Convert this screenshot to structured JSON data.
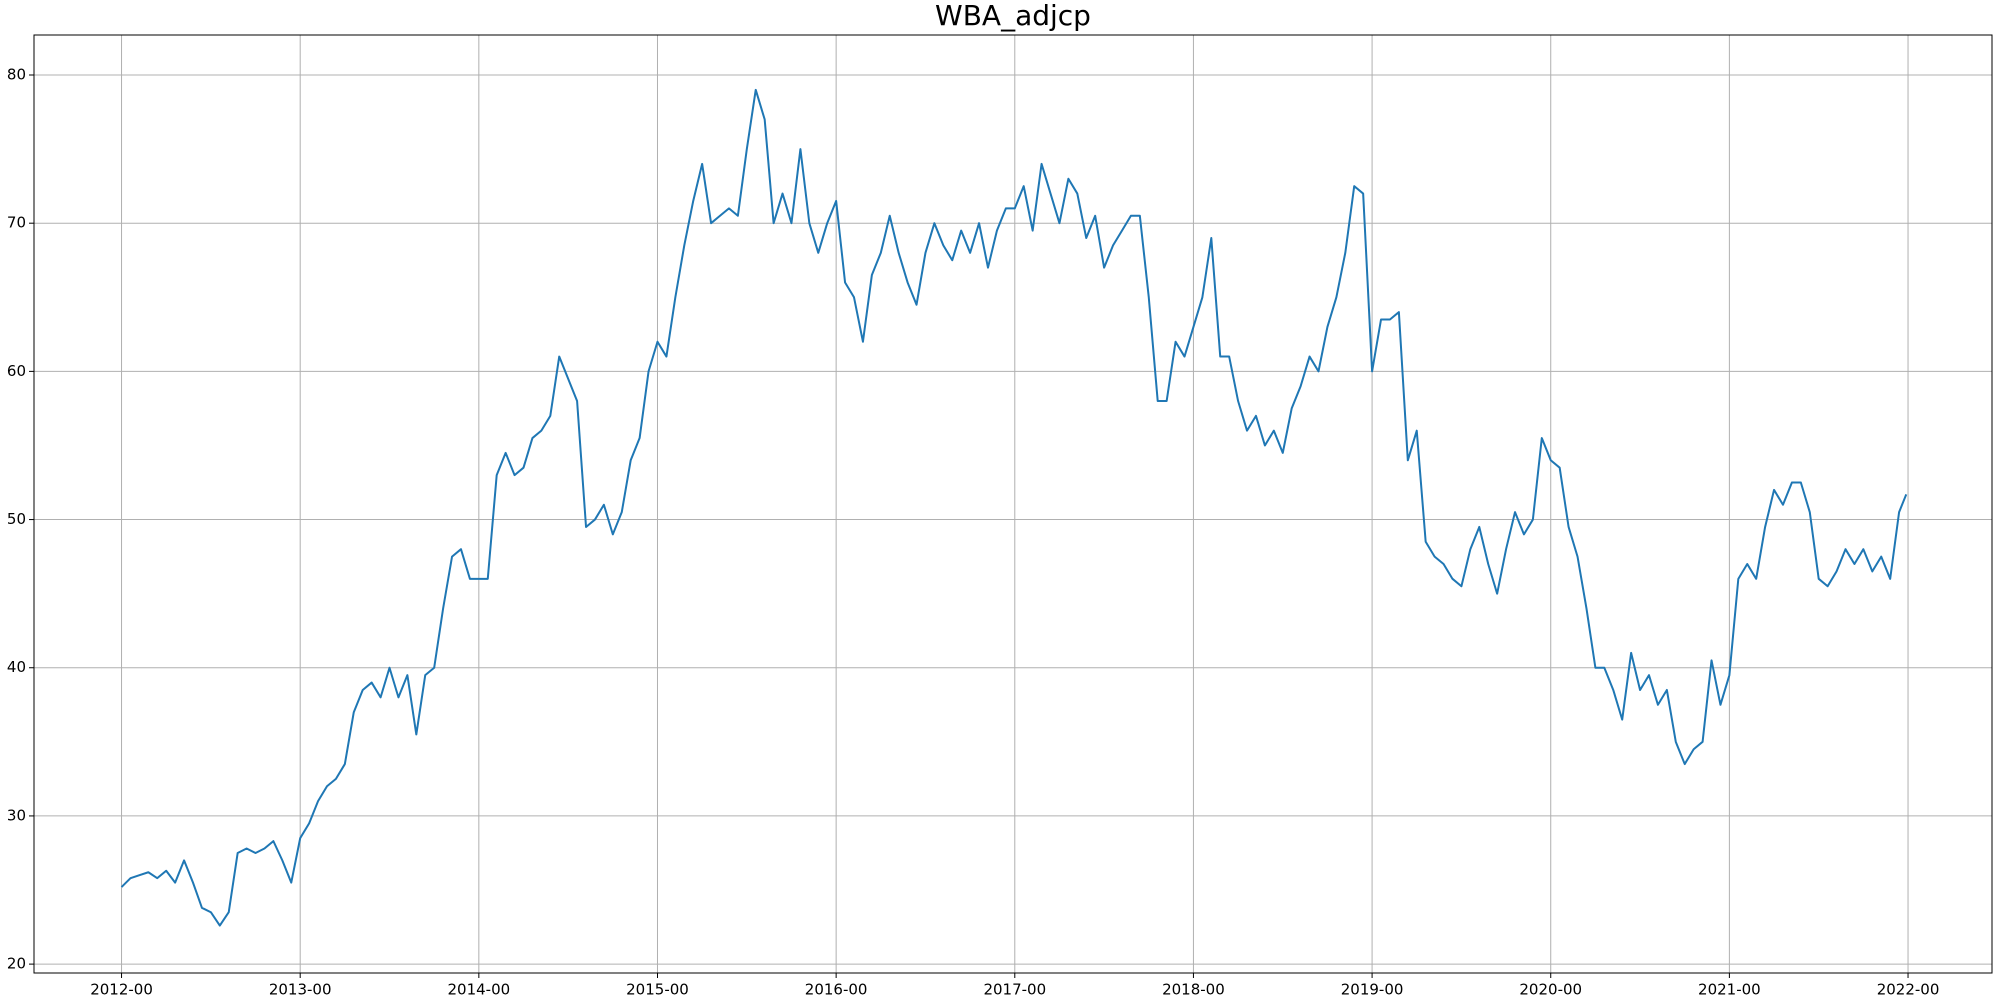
{
  "chart_data": {
    "type": "line",
    "title": "WBA_adjcp",
    "x": [
      2012.0,
      2012.05,
      2012.1,
      2012.15,
      2012.2,
      2012.25,
      2012.3,
      2012.35,
      2012.4,
      2012.45,
      2012.5,
      2012.55,
      2012.6,
      2012.65,
      2012.7,
      2012.75,
      2012.8,
      2012.85,
      2012.9,
      2012.95,
      2013.0,
      2013.05,
      2013.1,
      2013.15,
      2013.2,
      2013.25,
      2013.3,
      2013.35,
      2013.4,
      2013.45,
      2013.5,
      2013.55,
      2013.6,
      2013.65,
      2013.7,
      2013.75,
      2013.8,
      2013.85,
      2013.9,
      2013.95,
      2014.0,
      2014.05,
      2014.1,
      2014.15,
      2014.2,
      2014.25,
      2014.3,
      2014.35,
      2014.4,
      2014.45,
      2014.5,
      2014.55,
      2014.6,
      2014.65,
      2014.7,
      2014.75,
      2014.8,
      2014.85,
      2014.9,
      2014.95,
      2015.0,
      2015.05,
      2015.1,
      2015.15,
      2015.2,
      2015.25,
      2015.3,
      2015.35,
      2015.4,
      2015.45,
      2015.5,
      2015.55,
      2015.6,
      2015.65,
      2015.7,
      2015.75,
      2015.8,
      2015.85,
      2015.9,
      2015.95,
      2016.0,
      2016.05,
      2016.1,
      2016.15,
      2016.2,
      2016.25,
      2016.3,
      2016.35,
      2016.4,
      2016.45,
      2016.5,
      2016.55,
      2016.6,
      2016.65,
      2016.7,
      2016.75,
      2016.8,
      2016.85,
      2016.9,
      2016.95,
      2017.0,
      2017.05,
      2017.1,
      2017.15,
      2017.2,
      2017.25,
      2017.3,
      2017.35,
      2017.4,
      2017.45,
      2017.5,
      2017.55,
      2017.6,
      2017.65,
      2017.7,
      2017.75,
      2017.8,
      2017.85,
      2017.9,
      2017.95,
      2018.0,
      2018.05,
      2018.1,
      2018.15,
      2018.2,
      2018.25,
      2018.3,
      2018.35,
      2018.4,
      2018.45,
      2018.5,
      2018.55,
      2018.6,
      2018.65,
      2018.7,
      2018.75,
      2018.8,
      2018.85,
      2018.9,
      2018.95,
      2019.0,
      2019.05,
      2019.1,
      2019.15,
      2019.2,
      2019.25,
      2019.3,
      2019.35,
      2019.4,
      2019.45,
      2019.5,
      2019.55,
      2019.6,
      2019.65,
      2019.7,
      2019.75,
      2019.8,
      2019.85,
      2019.9,
      2019.95,
      2020.0,
      2020.05,
      2020.1,
      2020.15,
      2020.2,
      2020.25,
      2020.3,
      2020.35,
      2020.4,
      2020.45,
      2020.5,
      2020.55,
      2020.6,
      2020.65,
      2020.7,
      2020.75,
      2020.8,
      2020.85,
      2020.9,
      2020.95,
      2021.0,
      2021.05,
      2021.1,
      2021.15,
      2021.2,
      2021.25,
      2021.3,
      2021.35,
      2021.4,
      2021.45,
      2021.5,
      2021.55,
      2021.6,
      2021.65,
      2021.7,
      2021.75,
      2021.8,
      2021.85,
      2021.9,
      2021.95,
      2021.99
    ],
    "values": [
      25.2,
      25.8,
      26.0,
      26.2,
      25.8,
      26.3,
      25.5,
      27.0,
      25.5,
      23.8,
      23.5,
      22.6,
      23.5,
      27.5,
      27.8,
      27.5,
      27.8,
      28.3,
      27.0,
      25.5,
      28.5,
      29.5,
      31.0,
      32.0,
      32.5,
      33.5,
      37.0,
      38.5,
      39.0,
      38.0,
      40.0,
      38.0,
      39.5,
      35.5,
      39.5,
      40.0,
      44.0,
      47.5,
      48.0,
      46.0,
      46.0,
      46.0,
      53.0,
      54.5,
      53.0,
      53.5,
      55.5,
      56.0,
      57.0,
      61.0,
      59.5,
      58.0,
      49.5,
      50.0,
      51.0,
      49.0,
      50.5,
      54.0,
      55.5,
      60.0,
      62.0,
      61.0,
      65.0,
      68.5,
      71.5,
      74.0,
      70.0,
      70.5,
      71.0,
      70.5,
      75.0,
      79.0,
      77.0,
      70.0,
      72.0,
      70.0,
      75.0,
      70.0,
      68.0,
      70.0,
      71.5,
      66.0,
      65.0,
      62.0,
      66.5,
      68.0,
      70.5,
      68.0,
      66.0,
      64.5,
      68.0,
      70.0,
      68.5,
      67.5,
      69.5,
      68.0,
      70.0,
      67.0,
      69.5,
      71.0,
      71.0,
      72.5,
      69.5,
      74.0,
      72.0,
      70.0,
      73.0,
      72.0,
      69.0,
      70.5,
      67.0,
      68.5,
      69.5,
      70.5,
      70.5,
      65.0,
      58.0,
      58.0,
      62.0,
      61.0,
      63.0,
      65.0,
      69.0,
      61.0,
      61.0,
      58.0,
      56.0,
      57.0,
      55.0,
      56.0,
      54.5,
      57.5,
      59.0,
      61.0,
      60.0,
      63.0,
      65.0,
      68.0,
      72.5,
      72.0,
      60.0,
      63.5,
      63.5,
      64.0,
      54.0,
      56.0,
      48.5,
      47.5,
      47.0,
      46.0,
      45.5,
      48.0,
      49.5,
      47.0,
      45.0,
      48.0,
      50.5,
      49.0,
      50.0,
      55.5,
      54.0,
      53.5,
      49.5,
      47.5,
      44.0,
      40.0,
      40.0,
      38.5,
      36.5,
      41.0,
      38.5,
      39.5,
      37.5,
      38.5,
      35.0,
      33.5,
      34.5,
      35.0,
      40.5,
      37.5,
      39.5,
      46.0,
      47.0,
      46.0,
      49.5,
      52.0,
      51.0,
      52.5,
      52.5,
      50.5,
      46.0,
      45.5,
      46.5,
      48.0,
      47.0,
      48.0,
      46.5,
      47.5,
      46.0,
      50.5,
      51.7
    ],
    "color": "#1f77b4",
    "xlim": [
      2011.51,
      2022.47
    ],
    "xticks": [
      {
        "value": 2012,
        "label": "2012-00"
      },
      {
        "value": 2013,
        "label": "2013-00"
      },
      {
        "value": 2014,
        "label": "2014-00"
      },
      {
        "value": 2015,
        "label": "2015-00"
      },
      {
        "value": 2016,
        "label": "2016-00"
      },
      {
        "value": 2017,
        "label": "2017-00"
      },
      {
        "value": 2018,
        "label": "2018-00"
      },
      {
        "value": 2019,
        "label": "2019-00"
      },
      {
        "value": 2020,
        "label": "2020-00"
      },
      {
        "value": 2021,
        "label": "2021-00"
      },
      {
        "value": 2022,
        "label": "2022-00"
      }
    ],
    "ylim": [
      19.4,
      82.7
    ],
    "yticks": [
      20,
      30,
      40,
      50,
      60,
      70,
      80
    ],
    "grid": true
  }
}
